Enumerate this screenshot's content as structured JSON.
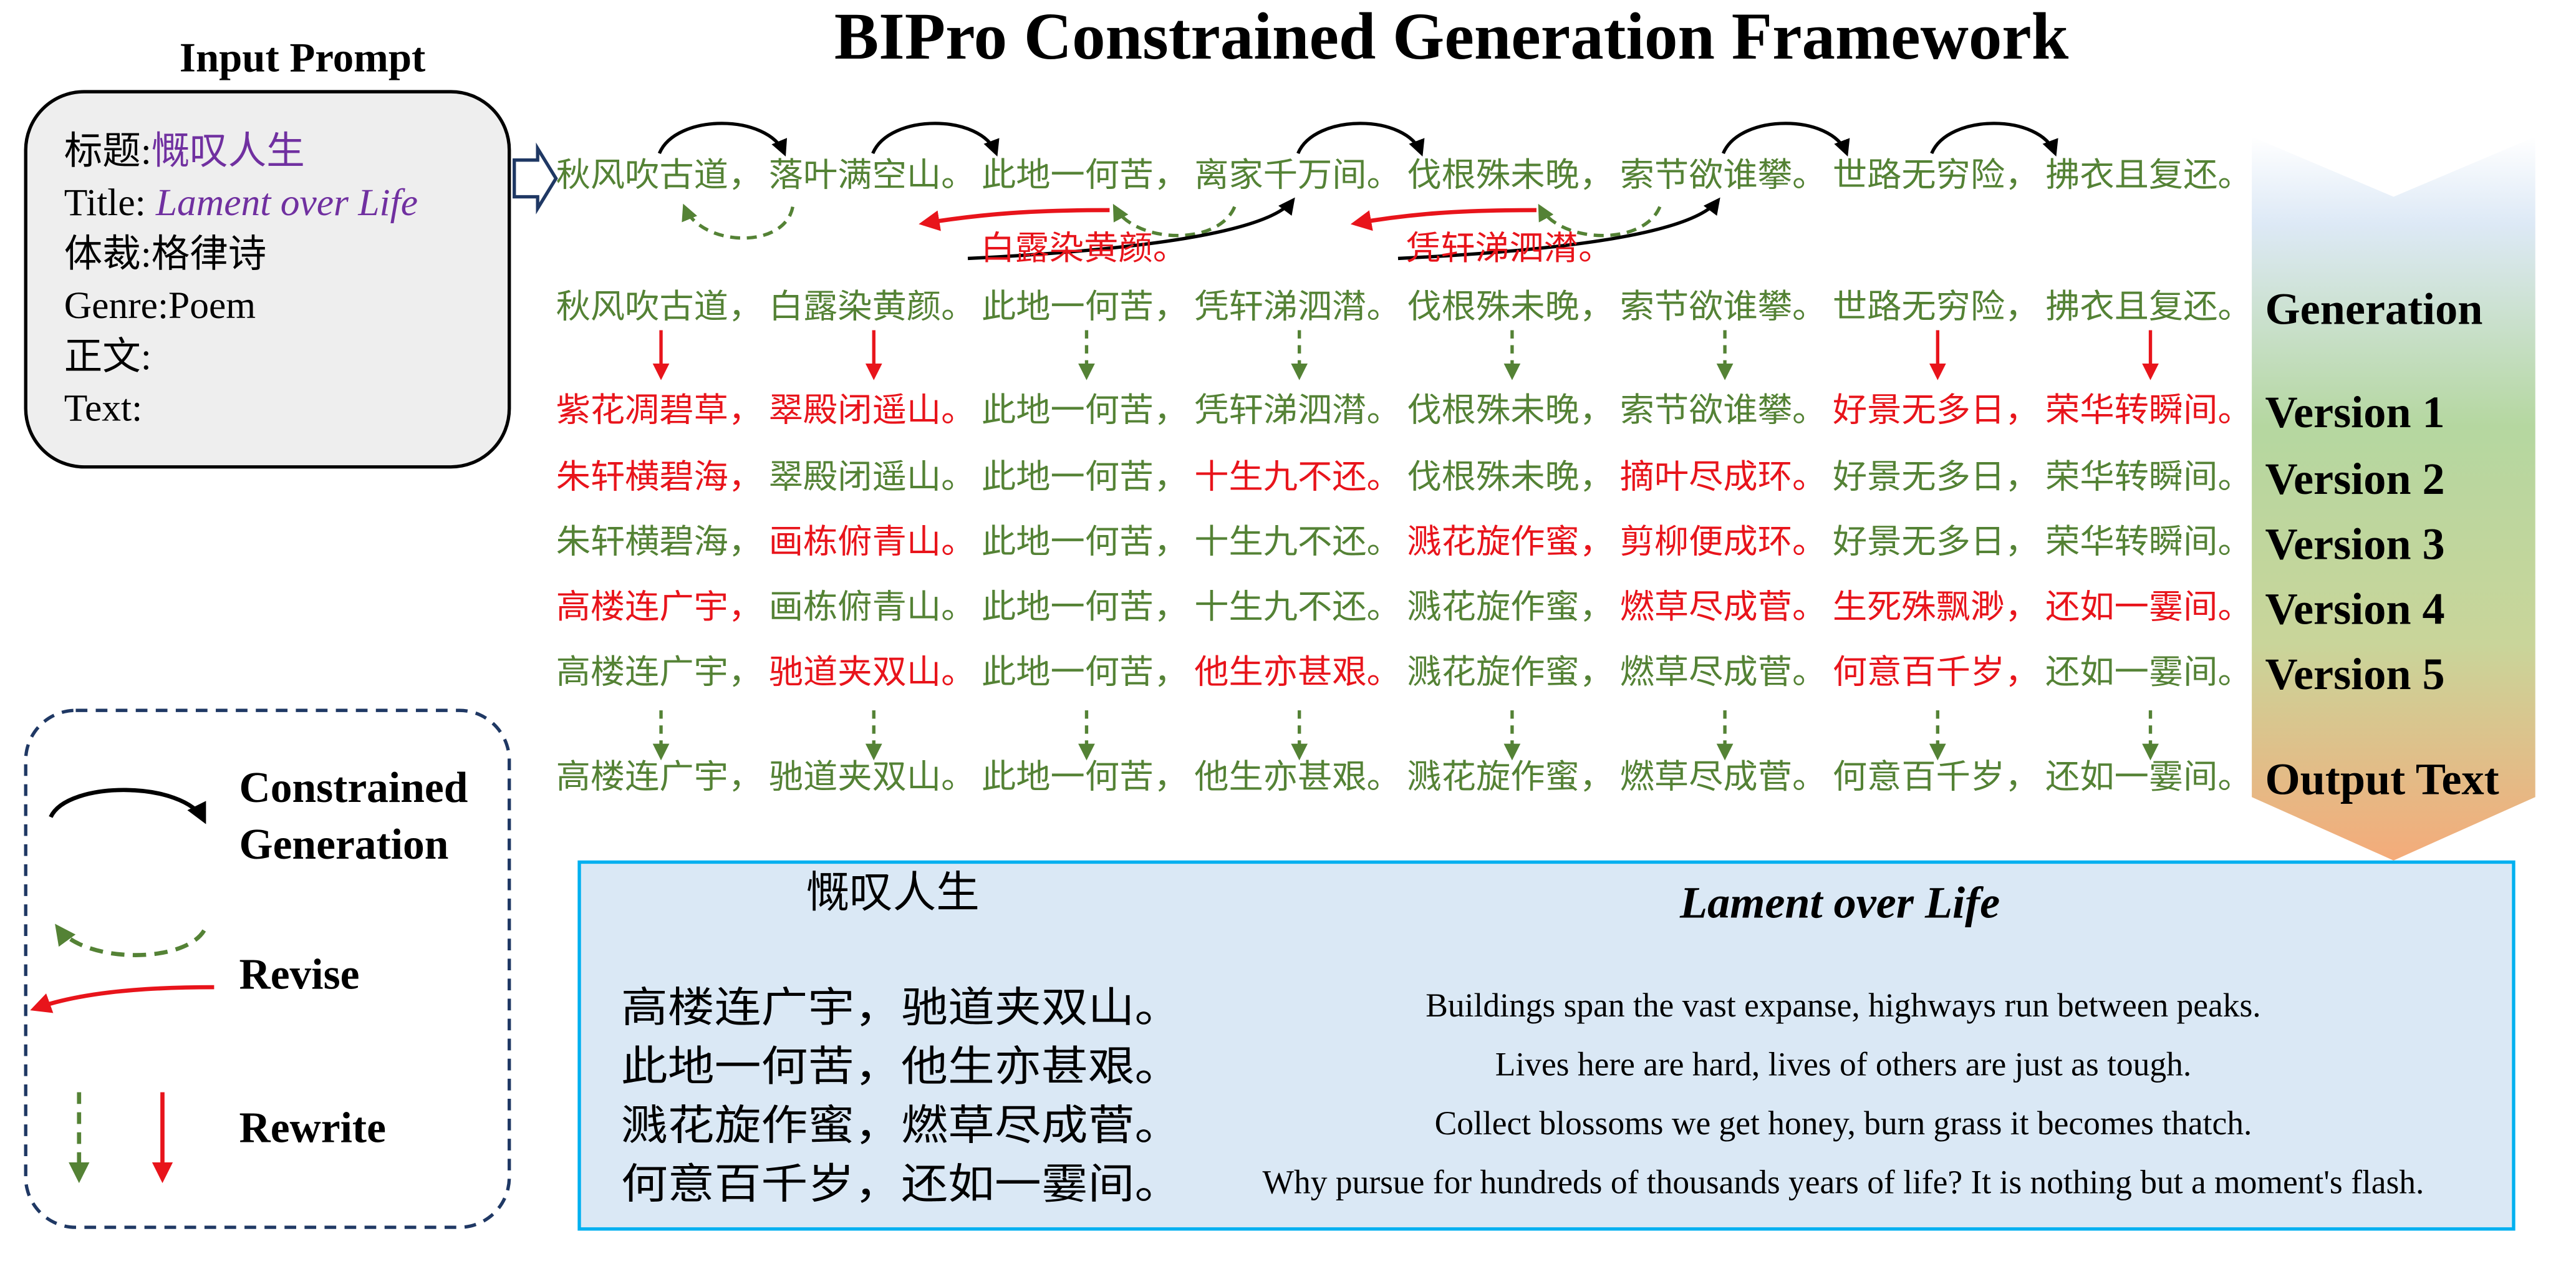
{
  "title": "BIPro Constrained Generation Framework",
  "input_prompt": {
    "heading": "Input Prompt",
    "lines": [
      {
        "key": "标题:",
        "value": "慨叹人生"
      },
      {
        "key": "Title:",
        "value": "Lament over Life",
        "italic": true
      },
      {
        "key": "体裁:格律诗"
      },
      {
        "key": "Genre:Poem"
      },
      {
        "key": "正文:"
      },
      {
        "key": "Text:"
      }
    ]
  },
  "legend": [
    {
      "lines": [
        "Constrained",
        "Generation"
      ]
    },
    {
      "lines": [
        "Revise"
      ]
    },
    {
      "lines": [
        "Rewrite"
      ]
    }
  ],
  "draft": {
    "color": "#548235",
    "segments": [
      "秋风吹古道，",
      "落叶满空山。",
      "此地一何苦，",
      "离家千万间。",
      "伐根殊未晚，",
      "索节欲谁攀。",
      "世路无穷险，",
      "拂衣且复还。"
    ]
  },
  "revisions": {
    "color": "#e8141b",
    "segments": [
      null,
      "白露染黄颜。",
      null,
      "凭轩涕泗潸。",
      null,
      null,
      null,
      null
    ]
  },
  "rows": [
    {
      "label": "Generation",
      "segments": [
        {
          "text": "秋风吹古道，",
          "color": "#548235"
        },
        {
          "text": "白露染黄颜。",
          "color": "#548235"
        },
        {
          "text": "此地一何苦，",
          "color": "#548235"
        },
        {
          "text": "凭轩涕泗潸。",
          "color": "#548235"
        },
        {
          "text": "伐根殊未晚，",
          "color": "#548235"
        },
        {
          "text": "索节欲谁攀。",
          "color": "#548235"
        },
        {
          "text": "世路无穷险，",
          "color": "#548235"
        },
        {
          "text": "拂衣且复还。",
          "color": "#548235"
        }
      ]
    },
    {
      "label": "Version 1",
      "segments": [
        {
          "text": "紫花凋碧草，",
          "color": "#e8141b"
        },
        {
          "text": "翠殿闭遥山。",
          "color": "#e8141b"
        },
        {
          "text": "此地一何苦，",
          "color": "#548235"
        },
        {
          "text": "凭轩涕泗潸。",
          "color": "#548235"
        },
        {
          "text": "伐根殊未晚，",
          "color": "#548235"
        },
        {
          "text": "索节欲谁攀。",
          "color": "#548235"
        },
        {
          "text": "好景无多日，",
          "color": "#e8141b"
        },
        {
          "text": "荣华转瞬间。",
          "color": "#e8141b"
        }
      ]
    },
    {
      "label": "Version 2",
      "segments": [
        {
          "text": "朱轩横碧海，",
          "color": "#e8141b"
        },
        {
          "text": "翠殿闭遥山。",
          "color": "#548235"
        },
        {
          "text": "此地一何苦，",
          "color": "#548235"
        },
        {
          "text": "十生九不还。",
          "color": "#e8141b"
        },
        {
          "text": "伐根殊未晚，",
          "color": "#548235"
        },
        {
          "text": "摘叶尽成环。",
          "color": "#e8141b"
        },
        {
          "text": "好景无多日，",
          "color": "#548235"
        },
        {
          "text": "荣华转瞬间。",
          "color": "#548235"
        }
      ]
    },
    {
      "label": "Version 3",
      "segments": [
        {
          "text": "朱轩横碧海，",
          "color": "#548235"
        },
        {
          "text": "画栋俯青山。",
          "color": "#e8141b"
        },
        {
          "text": "此地一何苦，",
          "color": "#548235"
        },
        {
          "text": "十生九不还。",
          "color": "#548235"
        },
        {
          "text": "溅花旋作蜜，",
          "color": "#e8141b"
        },
        {
          "text": "剪柳便成环。",
          "color": "#e8141b"
        },
        {
          "text": "好景无多日，",
          "color": "#548235"
        },
        {
          "text": "荣华转瞬间。",
          "color": "#548235"
        }
      ]
    },
    {
      "label": "Version 4",
      "segments": [
        {
          "text": "高楼连广宇，",
          "color": "#e8141b"
        },
        {
          "text": "画栋俯青山。",
          "color": "#548235"
        },
        {
          "text": "此地一何苦，",
          "color": "#548235"
        },
        {
          "text": "十生九不还。",
          "color": "#548235"
        },
        {
          "text": "溅花旋作蜜，",
          "color": "#548235"
        },
        {
          "text": "燃草尽成菅。",
          "color": "#e8141b"
        },
        {
          "text": "生死殊飘渺，",
          "color": "#e8141b"
        },
        {
          "text": "还如一霎间。",
          "color": "#e8141b"
        }
      ]
    },
    {
      "label": "Version 5",
      "segments": [
        {
          "text": "高楼连广宇，",
          "color": "#548235"
        },
        {
          "text": "驰道夹双山。",
          "color": "#e8141b"
        },
        {
          "text": "此地一何苦，",
          "color": "#548235"
        },
        {
          "text": "他生亦甚艰。",
          "color": "#e8141b"
        },
        {
          "text": "溅花旋作蜜，",
          "color": "#548235"
        },
        {
          "text": "燃草尽成菅。",
          "color": "#548235"
        },
        {
          "text": "何意百千岁，",
          "color": "#e8141b"
        },
        {
          "text": "还如一霎间。",
          "color": "#548235"
        }
      ]
    },
    {
      "label": "Output Text",
      "segments": [
        {
          "text": "高楼连广宇，",
          "color": "#548235"
        },
        {
          "text": "驰道夹双山。",
          "color": "#548235"
        },
        {
          "text": "此地一何苦，",
          "color": "#548235"
        },
        {
          "text": "他生亦甚艰。",
          "color": "#548235"
        },
        {
          "text": "溅花旋作蜜，",
          "color": "#548235"
        },
        {
          "text": "燃草尽成菅。",
          "color": "#548235"
        },
        {
          "text": "何意百千岁，",
          "color": "#548235"
        },
        {
          "text": "还如一霎间。",
          "color": "#548235"
        }
      ]
    }
  ],
  "poem": {
    "title_zh": "慨叹人生",
    "title_en": "Lament over Life",
    "lines_zh": [
      "高楼连广宇，驰道夹双山。",
      "此地一何苦，他生亦甚艰。",
      "溅花旋作蜜，燃草尽成菅。",
      "何意百千岁，还如一霎间。"
    ],
    "lines_en": [
      "Buildings span the vast expanse, highways run between peaks.",
      "Lives here are hard, lives of others are just as tough.",
      "Collect blossoms we get honey, burn grass it becomes thatch.",
      "Why pursue for hundreds of thousands years of life? It is nothing but a moment's flash."
    ]
  }
}
